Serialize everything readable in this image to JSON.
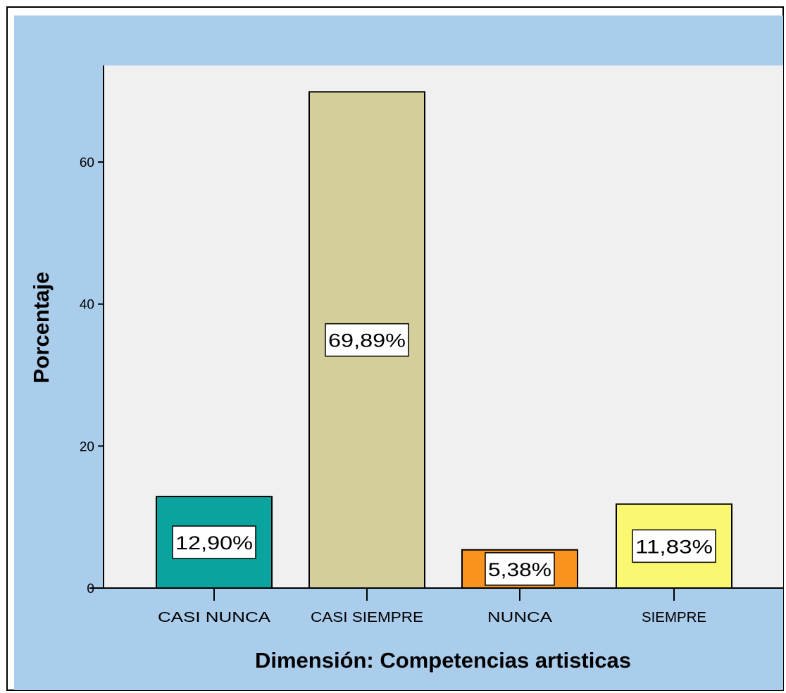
{
  "chart_data": {
    "type": "bar",
    "title": "",
    "xlabel": "Dimensión: Competencias artisticas",
    "ylabel": "Porcentaje",
    "categories": [
      "CASI NUNCA",
      "CASI SIEMPRE",
      "NUNCA",
      "SIEMPRE"
    ],
    "values": [
      12.9,
      69.89,
      5.38,
      11.83
    ],
    "data_labels": [
      "12,90%",
      "69,89%",
      "5,38%",
      "11,83%"
    ],
    "bar_colors": [
      "#0aa39e",
      "#d4ce9a",
      "#f7931e",
      "#faf870"
    ],
    "yticks": [
      0,
      20,
      40,
      60
    ],
    "ytick_labels": [
      "0",
      "20",
      "40",
      "60"
    ],
    "ylim": [
      0,
      73.6
    ],
    "grid": false,
    "legend": "none"
  },
  "colors": {
    "outer_background": "#aacdec",
    "plot_background": "#f0f0f0",
    "frame_border": "#000000"
  }
}
